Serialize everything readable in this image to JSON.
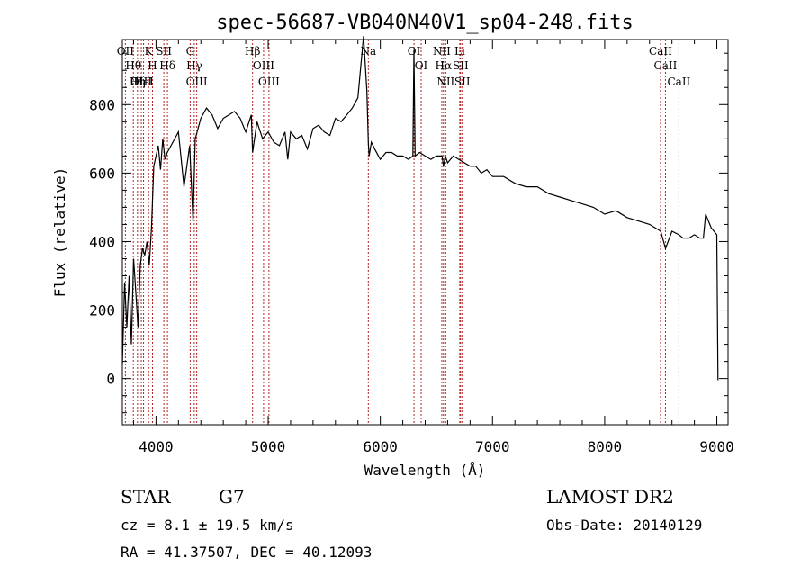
{
  "chart_data": {
    "type": "line",
    "title": "spec-56687-VB040N40V1_sp04-248.fits",
    "xlabel": "Wavelength (Å)",
    "ylabel": "Flux (relative)",
    "xlim": [
      3700,
      9100
    ],
    "ylim": [
      -135,
      990
    ],
    "xticks": [
      4000,
      5000,
      6000,
      7000,
      8000,
      9000
    ],
    "yticks": [
      0,
      200,
      400,
      600,
      800
    ],
    "grid": false,
    "series": [
      {
        "x": [
          3700,
          3720,
          3740,
          3760,
          3780,
          3800,
          3820,
          3840,
          3860,
          3880,
          3900,
          3920,
          3940,
          3960,
          3980,
          4000,
          4020,
          4040,
          4060,
          4080,
          4100,
          4150,
          4200,
          4250,
          4300,
          4330,
          4350,
          4400,
          4450,
          4500,
          4550,
          4600,
          4650,
          4700,
          4750,
          4800,
          4850,
          4861,
          4900,
          4950,
          5000,
          5050,
          5100,
          5150,
          5175,
          5200,
          5250,
          5300,
          5350,
          5400,
          5450,
          5500,
          5550,
          5600,
          5650,
          5700,
          5750,
          5800,
          5850,
          5880,
          5893,
          5900,
          5920,
          5950,
          6000,
          6050,
          6100,
          6150,
          6200,
          6250,
          6290,
          6300,
          6310,
          6350,
          6400,
          6450,
          6500,
          6550,
          6563,
          6580,
          6600,
          6650,
          6700,
          6750,
          6800,
          6850,
          6900,
          6950,
          7000,
          7100,
          7200,
          7300,
          7400,
          7500,
          7600,
          7700,
          7800,
          7900,
          8000,
          8100,
          8200,
          8300,
          8400,
          8500,
          8542,
          8600,
          8662,
          8700,
          8750,
          8800,
          8850,
          8880,
          8900,
          8950,
          9000,
          9010
        ],
        "y": [
          40,
          280,
          150,
          300,
          100,
          350,
          250,
          150,
          330,
          380,
          360,
          400,
          330,
          440,
          620,
          650,
          680,
          610,
          700,
          640,
          660,
          690,
          720,
          560,
          680,
          460,
          700,
          760,
          790,
          770,
          730,
          760,
          770,
          780,
          760,
          720,
          770,
          660,
          750,
          700,
          720,
          690,
          680,
          720,
          640,
          720,
          700,
          710,
          670,
          730,
          740,
          720,
          710,
          760,
          750,
          770,
          790,
          820,
          1000,
          840,
          690,
          650,
          690,
          670,
          640,
          660,
          660,
          650,
          650,
          640,
          650,
          960,
          650,
          660,
          650,
          640,
          650,
          650,
          620,
          650,
          630,
          650,
          640,
          630,
          620,
          620,
          600,
          610,
          590,
          590,
          570,
          560,
          560,
          540,
          530,
          520,
          510,
          500,
          480,
          490,
          470,
          460,
          450,
          430,
          380,
          430,
          420,
          410,
          410,
          420,
          410,
          410,
          480,
          440,
          420,
          -5
        ]
      }
    ],
    "lines": [
      {
        "name": "OII",
        "x": 3727
      },
      {
        "name": "Hθ",
        "x": 3798
      },
      {
        "name": "Hη",
        "x": 3835
      },
      {
        "name": "OIII",
        "x": 3869
      },
      {
        "name": "HeI",
        "x": 3889
      },
      {
        "name": "K",
        "x": 3934
      },
      {
        "name": "H",
        "x": 3969
      },
      {
        "name": "SII",
        "x": 4070
      },
      {
        "name": "Hδ",
        "x": 4102
      },
      {
        "name": "G",
        "x": 4305
      },
      {
        "name": "Hγ",
        "x": 4341
      },
      {
        "name": "OIII",
        "x": 4363
      },
      {
        "name": "Hβ",
        "x": 4861
      },
      {
        "name": "OIII",
        "x": 4959
      },
      {
        "name": "OIII",
        "x": 5007
      },
      {
        "name": "Na",
        "x": 5893
      },
      {
        "name": "OI",
        "x": 6300
      },
      {
        "name": "OI",
        "x": 6364
      },
      {
        "name": "NII",
        "x": 6548
      },
      {
        "name": "Hα",
        "x": 6563
      },
      {
        "name": "NII",
        "x": 6583
      },
      {
        "name": "Li",
        "x": 6708
      },
      {
        "name": "SII",
        "x": 6716
      },
      {
        "name": "SII",
        "x": 6731
      },
      {
        "name": "CaII",
        "x": 8498
      },
      {
        "name": "CaII",
        "x": 8542
      },
      {
        "name": "CaII",
        "x": 8662
      }
    ]
  },
  "info": {
    "object_class": "STAR",
    "subclass": "G7",
    "survey": "LAMOST DR2",
    "redshift": "cz = 8.1 ± 19.5 km/s",
    "obs_date": "Obs-Date: 20140129",
    "coords": "RA =  41.37507, DEC =  40.12093"
  }
}
